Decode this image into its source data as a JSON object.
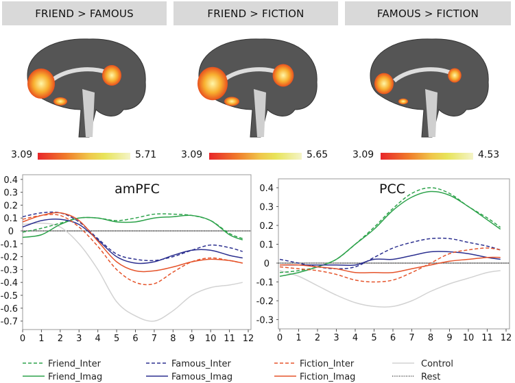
{
  "panels": [
    {
      "title": "FRIEND > FAMOUS",
      "cb_min": "3.09",
      "cb_max": "5.71"
    },
    {
      "title": "FRIEND > FICTION",
      "cb_min": "3.09",
      "cb_max": "5.65"
    },
    {
      "title": "FAMOUS > FICTION",
      "cb_min": "3.09",
      "cb_max": "4.53"
    }
  ],
  "colors": {
    "friend": "#2ca24a",
    "famous": "#2b2f8f",
    "fiction": "#e5532a",
    "control": "#d2d2d2",
    "rest": "#222222"
  },
  "legend": [
    {
      "label": "Friend_Inter",
      "group": "friend",
      "dash": true
    },
    {
      "label": "Friend_Imag",
      "group": "friend",
      "dash": false
    },
    {
      "label": "Famous_Inter",
      "group": "famous",
      "dash": true
    },
    {
      "label": "Famous_Imag",
      "group": "famous",
      "dash": false
    },
    {
      "label": "Fiction_Inter",
      "group": "fiction",
      "dash": true
    },
    {
      "label": "Fiction_Imag",
      "group": "fiction",
      "dash": false
    },
    {
      "label": "Control",
      "group": "control",
      "dash": false
    },
    {
      "label": "Rest",
      "group": "rest",
      "dash": "dot"
    }
  ],
  "chart_data": [
    {
      "type": "line",
      "title": "amPFC",
      "xlabel": "",
      "ylabel": "",
      "xlim": [
        0,
        12
      ],
      "ylim": [
        -0.76,
        0.4
      ],
      "x_ticks": [
        "0",
        "1",
        "2",
        "3",
        "4",
        "5",
        "6",
        "7",
        "8",
        "9",
        "10",
        "11",
        "12"
      ],
      "y_ticks": [
        "0.4",
        "0.3",
        "0.2",
        "0.1",
        "0",
        "-0.1",
        "-0.2",
        "-0.3",
        "-0.4",
        "-0.5",
        "-0.6",
        "-0.7"
      ],
      "x": [
        0,
        1,
        2,
        3,
        4,
        5,
        6,
        7,
        8,
        9,
        10,
        11,
        11.7
      ],
      "series": [
        {
          "name": "Control",
          "values": [
            0.05,
            0.06,
            0.03,
            -0.1,
            -0.3,
            -0.55,
            -0.66,
            -0.7,
            -0.62,
            -0.5,
            -0.44,
            -0.42,
            -0.4
          ]
        },
        {
          "name": "Friend_Inter",
          "values": [
            -0.01,
            0.02,
            0.06,
            0.1,
            0.1,
            0.08,
            0.1,
            0.13,
            0.13,
            0.12,
            0.08,
            -0.02,
            -0.06
          ]
        },
        {
          "name": "Friend_Imag",
          "values": [
            -0.05,
            -0.03,
            0.05,
            0.1,
            0.1,
            0.07,
            0.07,
            0.1,
            0.11,
            0.12,
            0.08,
            -0.03,
            -0.07
          ]
        },
        {
          "name": "Famous_Inter",
          "values": [
            0.11,
            0.14,
            0.14,
            0.07,
            -0.06,
            -0.18,
            -0.22,
            -0.23,
            -0.2,
            -0.15,
            -0.11,
            -0.13,
            -0.16
          ]
        },
        {
          "name": "Famous_Imag",
          "values": [
            0.03,
            0.08,
            0.09,
            0.05,
            -0.07,
            -0.2,
            -0.25,
            -0.24,
            -0.19,
            -0.15,
            -0.15,
            -0.19,
            -0.21
          ]
        },
        {
          "name": "Fiction_Inter",
          "values": [
            0.09,
            0.12,
            0.12,
            0.03,
            -0.12,
            -0.3,
            -0.4,
            -0.41,
            -0.32,
            -0.24,
            -0.21,
            -0.23,
            -0.25
          ]
        },
        {
          "name": "Fiction_Imag",
          "values": [
            0.07,
            0.12,
            0.14,
            0.08,
            -0.08,
            -0.24,
            -0.31,
            -0.31,
            -0.28,
            -0.24,
            -0.22,
            -0.23,
            -0.25
          ]
        }
      ]
    },
    {
      "type": "line",
      "title": "PCC",
      "xlabel": "",
      "ylabel": "",
      "xlim": [
        0,
        12
      ],
      "ylim": [
        -0.35,
        0.45
      ],
      "x_ticks": [
        "0",
        "1",
        "2",
        "3",
        "4",
        "5",
        "6",
        "7",
        "8",
        "9",
        "10",
        "11",
        "12"
      ],
      "y_ticks": [
        "0.4",
        "0.3",
        "0.2",
        "0.1",
        "0",
        "-0.1",
        "-0.2",
        "-0.3"
      ],
      "x": [
        0,
        1,
        2,
        3,
        4,
        5,
        6,
        7,
        8,
        9,
        10,
        11,
        11.7
      ],
      "series": [
        {
          "name": "Control",
          "values": [
            -0.04,
            -0.07,
            -0.12,
            -0.17,
            -0.21,
            -0.23,
            -0.23,
            -0.2,
            -0.15,
            -0.11,
            -0.08,
            -0.05,
            -0.04
          ]
        },
        {
          "name": "Friend_Inter",
          "values": [
            -0.05,
            -0.04,
            -0.02,
            0.02,
            0.1,
            0.19,
            0.29,
            0.37,
            0.4,
            0.37,
            0.3,
            0.24,
            0.19
          ]
        },
        {
          "name": "Friend_Imag",
          "values": [
            -0.07,
            -0.05,
            -0.02,
            0.02,
            0.1,
            0.18,
            0.28,
            0.35,
            0.38,
            0.36,
            0.3,
            0.23,
            0.18
          ]
        },
        {
          "name": "Famous_Inter",
          "values": [
            0.02,
            0.0,
            -0.02,
            -0.03,
            -0.02,
            0.03,
            0.08,
            0.11,
            0.13,
            0.13,
            0.11,
            0.09,
            0.07
          ]
        },
        {
          "name": "Famous_Imag",
          "values": [
            -0.01,
            -0.01,
            -0.01,
            -0.01,
            -0.01,
            0.02,
            0.02,
            0.04,
            0.06,
            0.06,
            0.05,
            0.03,
            0.02
          ]
        },
        {
          "name": "Fiction_Inter",
          "values": [
            -0.02,
            -0.03,
            -0.04,
            -0.06,
            -0.09,
            -0.1,
            -0.09,
            -0.05,
            0.0,
            0.05,
            0.07,
            0.08,
            0.07
          ]
        },
        {
          "name": "Fiction_Imag",
          "values": [
            -0.01,
            -0.01,
            -0.02,
            -0.03,
            -0.05,
            -0.05,
            -0.05,
            -0.03,
            -0.01,
            0.01,
            0.02,
            0.03,
            0.03
          ]
        }
      ]
    }
  ]
}
